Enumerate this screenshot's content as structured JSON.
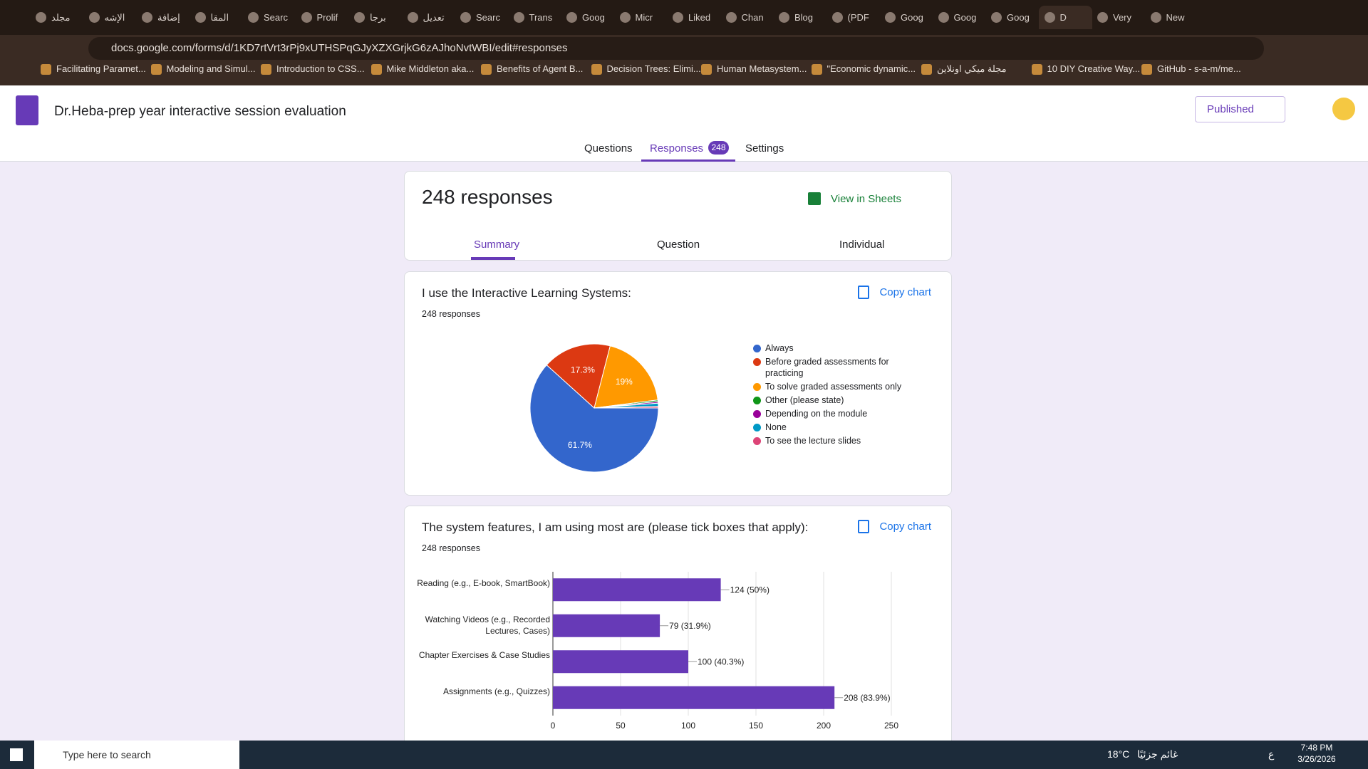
{
  "browser": {
    "tabs": [
      "مجلد",
      "الإشه",
      "إضافة",
      "المقا",
      "Searc",
      "Prolif",
      "برجا",
      "تعديل",
      "Searc",
      "Trans",
      "Goog",
      "Micr",
      "Liked",
      "Chan",
      "Blog",
      "(PDF",
      "Goog",
      "Goog",
      "Goog",
      "D",
      "Very",
      "New"
    ],
    "url": "docs.google.com/forms/d/1KD7rtVrt3rPj9xUTHSPqGJyXZXGrjkG6zAJhoNvtWBI/edit#responses",
    "bookmarks": [
      "Facilitating Paramet...",
      "Modeling and Simul...",
      "Introduction to CSS...",
      "Mike Middleton aka...",
      "Benefits of Agent B...",
      "Decision Trees: Elimi...",
      "Human Metasystem...",
      "\"Economic dynamic...",
      "مجلة ميكي اونلاين",
      "10 DIY Creative Way...",
      "GitHub - s-a-m/me..."
    ]
  },
  "form": {
    "title": "Dr.Heba-prep year interactive session evaluation",
    "button": "Published",
    "nav": [
      "Questions",
      "Responses",
      "Settings"
    ],
    "response_badge": "248"
  },
  "summary": {
    "heading": "248 responses",
    "view_sheets": "View in Sheets",
    "tabs": [
      "Summary",
      "Question",
      "Individual"
    ]
  },
  "chart_data": [
    {
      "type": "pie",
      "title": "I use the Interactive Learning Systems:",
      "subtitle": "248 responses",
      "action": "Copy chart",
      "categories": [
        "Always",
        "Before graded assessments for practicing",
        "To solve graded assessments only",
        "Other (please state)",
        "Depending on the module",
        "None",
        "To see the lecture slides"
      ],
      "values": [
        61.7,
        17.3,
        19,
        0.4,
        0.4,
        0.8,
        0.4
      ],
      "value_labels": [
        "61.7%",
        "17.3%",
        "19%",
        null,
        null,
        null,
        null
      ],
      "colors": [
        "#3366cc",
        "#dc3912",
        "#ff9900",
        "#109618",
        "#990099",
        "#0099c6",
        "#dd4477"
      ]
    },
    {
      "type": "bar",
      "title": "The system features, I am using most are (please tick boxes that apply):",
      "subtitle": "248 responses",
      "action": "Copy chart",
      "categories": [
        "Reading (e.g., E-book, SmartBook)",
        "Watching Videos (e.g., Recorded Lectures, Cases)",
        "Chapter Exercises & Case Studies",
        "Assignments (e.g., Quizzes)"
      ],
      "values": [
        124,
        79,
        100,
        208
      ],
      "value_labels": [
        "124 (50%)",
        "79 (31.9%)",
        "100 (40.3%)",
        "208 (83.9%)"
      ],
      "color": "#673ab7",
      "xlim": [
        0,
        250
      ],
      "xticks": [
        0,
        50,
        100,
        150,
        200,
        250
      ],
      "grid": true
    }
  ],
  "taskbar": {
    "search": "Type here to search",
    "weather": "18°C",
    "weather_text": "غائم جزئيًا",
    "time": "7:48 PM",
    "date": "3/26/2026",
    "lang": "ع"
  }
}
